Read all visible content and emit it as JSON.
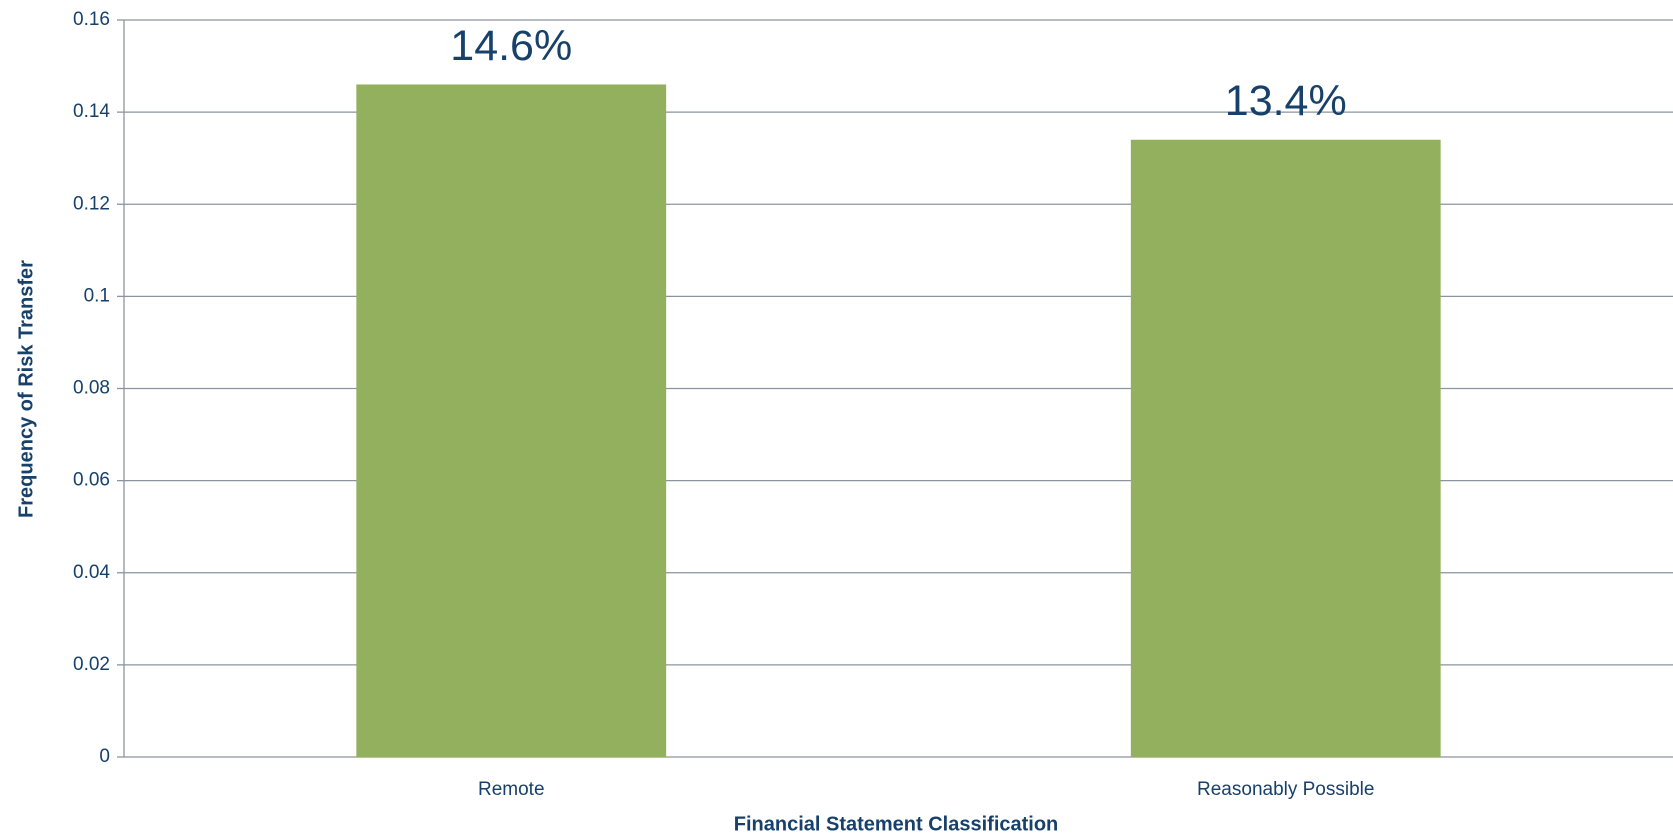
{
  "chart_data": {
    "type": "bar",
    "x_label": "Financial Statement Classification",
    "y_label": "Frequency of Risk Transfer",
    "categories": [
      "Remote",
      "Reasonably Possible"
    ],
    "values": [
      0.146,
      0.134
    ],
    "value_labels": [
      "14.6%",
      "13.4%"
    ],
    "color": "#93b05f",
    "ylim": [
      0,
      0.16
    ],
    "yticks": [
      0,
      0.02,
      0.04,
      0.06,
      0.08,
      0.1,
      0.12,
      0.14,
      0.16
    ],
    "grid": true
  }
}
